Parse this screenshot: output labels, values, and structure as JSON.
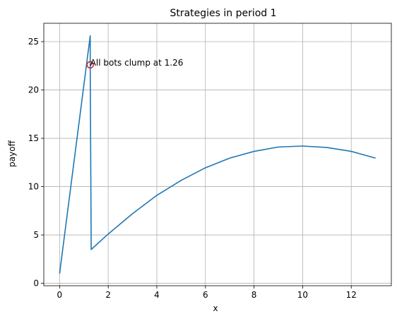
{
  "chart_data": {
    "type": "line",
    "title": "Strategies in period 1",
    "xlabel": "x",
    "ylabel": "payoff",
    "xlim": [
      -0.65,
      13.65
    ],
    "ylim": [
      -0.25,
      26.9
    ],
    "xticks": [
      0,
      2,
      4,
      6,
      8,
      10,
      12
    ],
    "yticks": [
      0,
      5,
      10,
      15,
      20,
      25
    ],
    "grid": true,
    "series": [
      {
        "color": "#1f77b4",
        "x": [
          0,
          1.26,
          1.26,
          1.3,
          2.0,
          3.0,
          4.0,
          5.0,
          6.0,
          7.0,
          8.0,
          9.0,
          10.0,
          11.0,
          12.0,
          13.0
        ],
        "y": [
          1.0,
          25.6,
          22.6,
          3.5,
          5.1,
          7.2,
          9.1,
          10.65,
          11.95,
          12.95,
          13.65,
          14.1,
          14.2,
          14.05,
          13.65,
          12.95
        ]
      }
    ],
    "marker": {
      "x": 1.26,
      "y": 22.6,
      "edge_color": "#d62728",
      "shape": "open-circle"
    },
    "annotation": {
      "text": "All bots clump at 1.26",
      "x": 1.26,
      "y": 22.6
    }
  }
}
